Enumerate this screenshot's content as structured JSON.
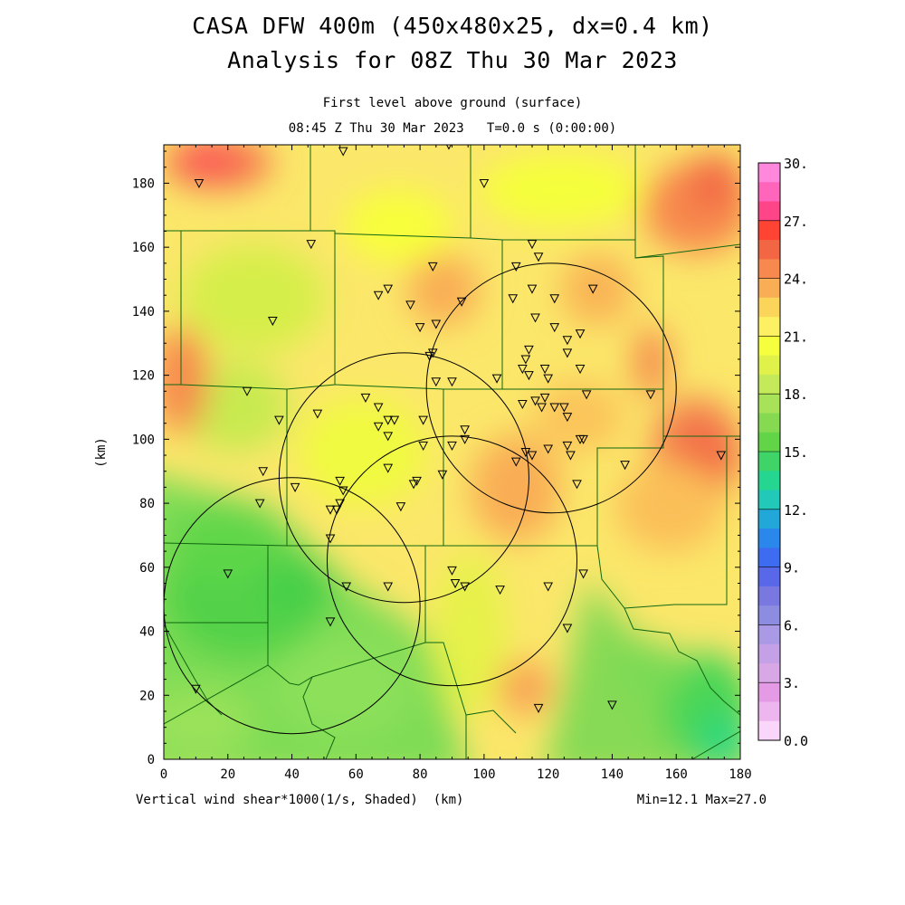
{
  "titles": {
    "line1": "CASA DFW 400m (450x480x25, dx=0.4 km)",
    "line2": "Analysis for 08Z Thu 30 Mar 2023",
    "level": "First level above ground (surface)",
    "time": "08:45 Z Thu 30 Mar 2023   T=0.0 s (0:00:00)"
  },
  "footer": {
    "variable": "Vertical wind shear*1000(1/s, Shaded)  (km)",
    "minmax": "Min=12.1 Max=27.0"
  },
  "axes": {
    "x_ticks": [
      "0",
      "20",
      "40",
      "60",
      "80",
      "100",
      "120",
      "140",
      "160",
      "180"
    ],
    "y_ticks": [
      "0",
      "20",
      "40",
      "60",
      "80",
      "100",
      "120",
      "140",
      "160",
      "180"
    ],
    "y_label": "(km)",
    "x_range": [
      0,
      180
    ],
    "y_range": [
      0,
      192
    ]
  },
  "colorbar": {
    "labels": [
      "30.",
      "27.",
      "24.",
      "21.",
      "18.",
      "15.",
      "12.",
      "9.",
      "6.",
      "3.",
      "0.0"
    ],
    "colors": [
      "#ff88dd",
      "#ff66bb",
      "#ff4488",
      "#ff4433",
      "#f26644",
      "#f7884e",
      "#f9ad55",
      "#fbd45a",
      "#fdf062",
      "#f5ff3d",
      "#e0f24a",
      "#c4ea5a",
      "#a8e258",
      "#86da52",
      "#62d448",
      "#3ed468",
      "#25d690",
      "#22c8b8",
      "#22a8d8",
      "#2a88ec",
      "#3e6cf0",
      "#5868e8",
      "#7878e0",
      "#8c8ce0",
      "#aa9ae6",
      "#c4a0e6",
      "#d8a8e6",
      "#e49ae4",
      "#eeb6ee",
      "#fad6fa"
    ]
  },
  "radar_rings": [
    {
      "center_km": [
        121,
        116
      ],
      "radius_km": 39
    },
    {
      "center_km": [
        75,
        88
      ],
      "radius_km": 39
    },
    {
      "center_km": [
        40,
        48
      ],
      "radius_km": 40
    },
    {
      "center_km": [
        90,
        62
      ],
      "radius_km": 39
    }
  ],
  "stations_km": [
    [
      11,
      180
    ],
    [
      56,
      190
    ],
    [
      89,
      192
    ],
    [
      100,
      180
    ],
    [
      46,
      161
    ],
    [
      115,
      161
    ],
    [
      117,
      157
    ],
    [
      84,
      154
    ],
    [
      110,
      154
    ],
    [
      67,
      145
    ],
    [
      70,
      147
    ],
    [
      77,
      142
    ],
    [
      93,
      143
    ],
    [
      109,
      144
    ],
    [
      115,
      147
    ],
    [
      122,
      144
    ],
    [
      134,
      147
    ],
    [
      34,
      137
    ],
    [
      80,
      135
    ],
    [
      85,
      136
    ],
    [
      116,
      138
    ],
    [
      122,
      135
    ],
    [
      126,
      131
    ],
    [
      130,
      133
    ],
    [
      114,
      128
    ],
    [
      84,
      127
    ],
    [
      83,
      126
    ],
    [
      113,
      125
    ],
    [
      119,
      122
    ],
    [
      112,
      122
    ],
    [
      114,
      120
    ],
    [
      120,
      119
    ],
    [
      104,
      119
    ],
    [
      85,
      118
    ],
    [
      90,
      118
    ],
    [
      130,
      122
    ],
    [
      126,
      127
    ],
    [
      26,
      115
    ],
    [
      63,
      113
    ],
    [
      112,
      111
    ],
    [
      116,
      112
    ],
    [
      118,
      110
    ],
    [
      119,
      113
    ],
    [
      122,
      110
    ],
    [
      125,
      110
    ],
    [
      126,
      107
    ],
    [
      132,
      114
    ],
    [
      152,
      114
    ],
    [
      36,
      106
    ],
    [
      48,
      108
    ],
    [
      67,
      104
    ],
    [
      70,
      106
    ],
    [
      72,
      106
    ],
    [
      67,
      110
    ],
    [
      70,
      101
    ],
    [
      81,
      106
    ],
    [
      94,
      103
    ],
    [
      94,
      100
    ],
    [
      90,
      98
    ],
    [
      81,
      98
    ],
    [
      113,
      96
    ],
    [
      115,
      95
    ],
    [
      120,
      97
    ],
    [
      126,
      98
    ],
    [
      127,
      95
    ],
    [
      131,
      100
    ],
    [
      130,
      100
    ],
    [
      110,
      93
    ],
    [
      70,
      91
    ],
    [
      31,
      90
    ],
    [
      144,
      92
    ],
    [
      174,
      95
    ],
    [
      55,
      87
    ],
    [
      56,
      84
    ],
    [
      78,
      86
    ],
    [
      79,
      87
    ],
    [
      87,
      89
    ],
    [
      41,
      85
    ],
    [
      30,
      80
    ],
    [
      55,
      80
    ],
    [
      54,
      78
    ],
    [
      52,
      78
    ],
    [
      74,
      79
    ],
    [
      129,
      86
    ],
    [
      52,
      69
    ],
    [
      20,
      58
    ],
    [
      131,
      58
    ],
    [
      90,
      59
    ],
    [
      91,
      55
    ],
    [
      94,
      54
    ],
    [
      105,
      53
    ],
    [
      57,
      54
    ],
    [
      70,
      54
    ],
    [
      120,
      54
    ],
    [
      52,
      43
    ],
    [
      126,
      41
    ],
    [
      10,
      22
    ],
    [
      140,
      17
    ],
    [
      117,
      16
    ]
  ]
}
